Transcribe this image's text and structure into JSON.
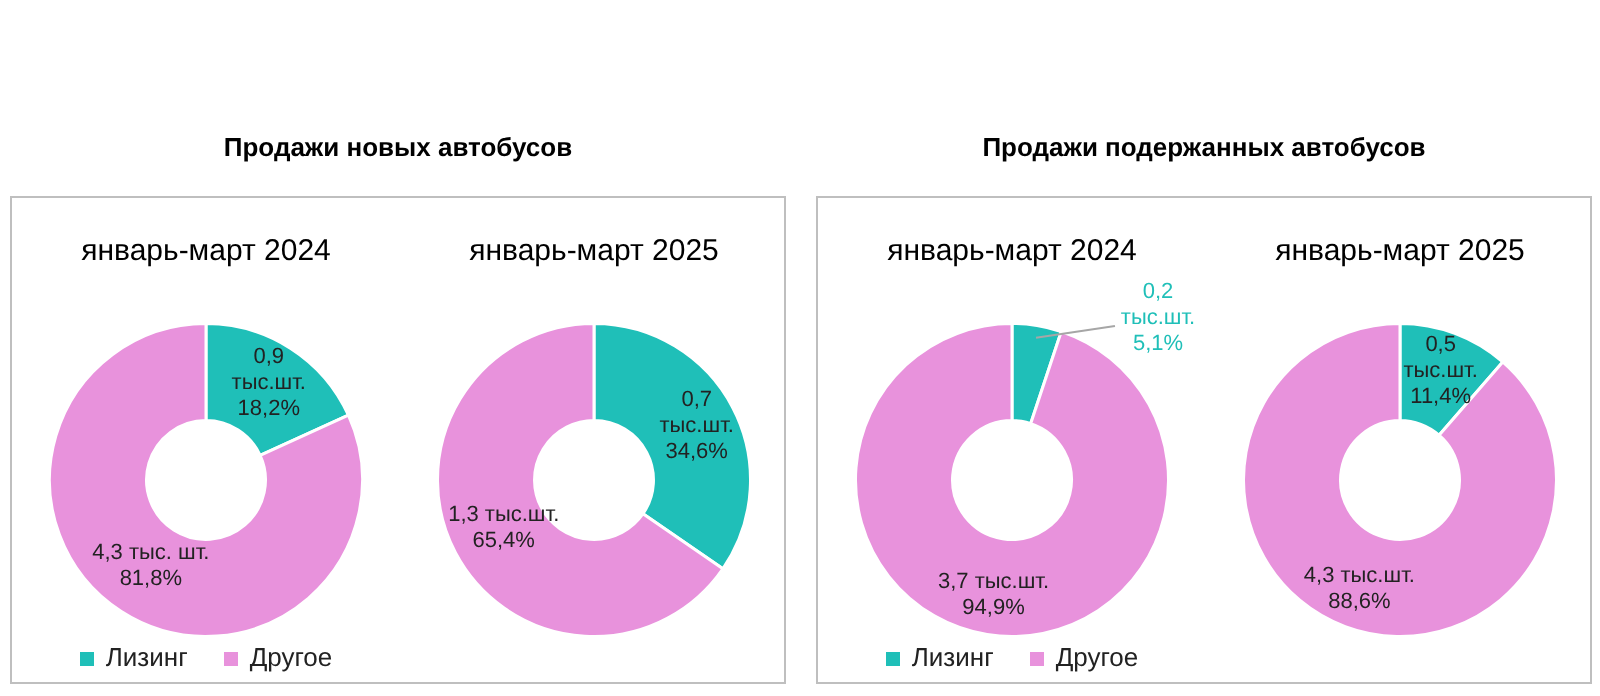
{
  "chart_data": [
    {
      "type": "donut",
      "title": "Продажи новых автобусов",
      "subtitle": "январь-март 2024",
      "categories": [
        "Лизинг",
        "Другое"
      ],
      "values": [
        18.2,
        81.8
      ],
      "colors": [
        "#1fbfb8",
        "#e892dc"
      ],
      "value_labels": [
        "0,9\nтыс.шт.\n18,2%",
        "4,3 тыс. шт.\n81,8%"
      ],
      "legend": "bottom"
    },
    {
      "type": "donut",
      "subtitle": "январь-март 2025",
      "categories": [
        null,
        null
      ],
      "values": [
        34.6,
        65.4
      ],
      "colors": [
        "#1fbfb8",
        "#e892dc"
      ],
      "value_labels": [
        "0,7\nтыс.шт.\n34,6%",
        "1,3 тыс.шт.\n65,4%"
      ]
    },
    {
      "type": "donut",
      "title": "Продажи подержанных автобусов",
      "subtitle": "январь-март 2024",
      "categories": [
        "Лизинг",
        "Другое"
      ],
      "values": [
        5.1,
        94.9
      ],
      "colors": [
        "#1fbfb8",
        "#e892dc"
      ],
      "value_labels": [
        "0,2\nтыс.шт.\n5,1%",
        "3,7 тыс.шт.\n94,9%"
      ],
      "legend": "bottom"
    },
    {
      "type": "donut",
      "subtitle": "январь-март 2025",
      "categories": [
        null,
        null
      ],
      "values": [
        11.4,
        88.6
      ],
      "colors": [
        "#1fbfb8",
        "#e892dc"
      ],
      "value_labels": [
        "0,5\nтыс.шт.\n11,4%",
        "4,3 тыс.шт.\n88,6%"
      ]
    }
  ]
}
